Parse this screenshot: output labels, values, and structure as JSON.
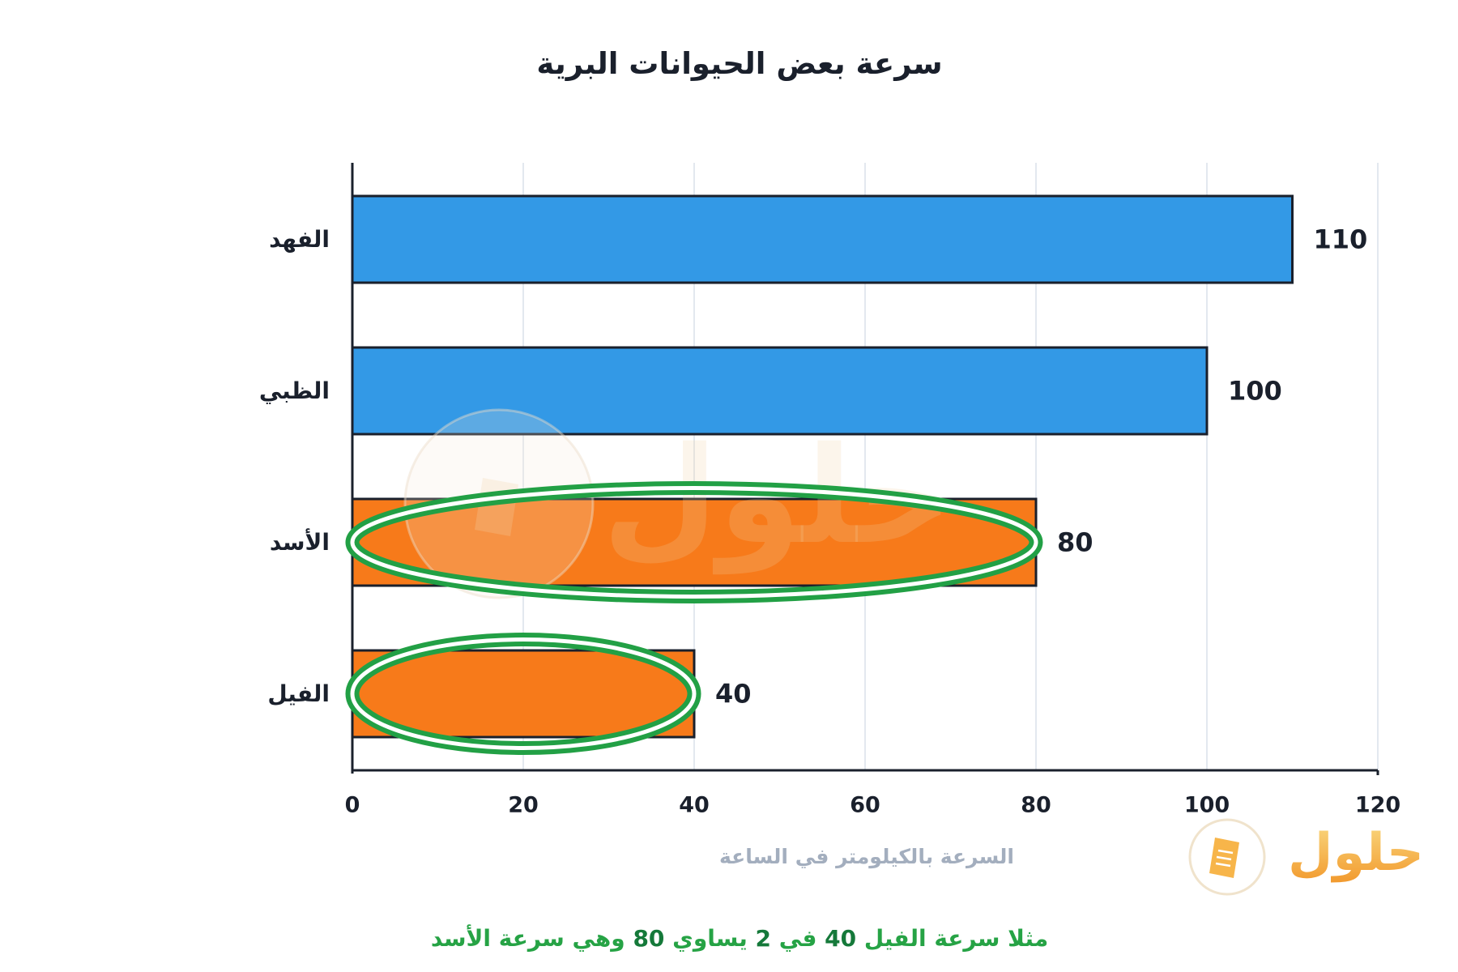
{
  "chart_data": {
    "type": "bar",
    "orientation": "horizontal",
    "title": "سرعة بعض الحيوانات البرية",
    "xlabel": "السرعة بالكيلومتر في الساعة",
    "ylabel": "",
    "categories": [
      "الفهد",
      "الظبي",
      "الأسد",
      "الفيل"
    ],
    "values": [
      110,
      100,
      80,
      40
    ],
    "data_labels": [
      "110",
      "100",
      "80",
      "40"
    ],
    "bar_colors": [
      "#3399E6",
      "#3399E6",
      "#F77A1A",
      "#F77A1A"
    ],
    "xlim": [
      0,
      120
    ],
    "xticks": [
      0,
      20,
      40,
      60,
      80,
      100,
      120
    ],
    "grid": true,
    "highlighted_indices": [
      2,
      3
    ],
    "highlight_color": "#22A045"
  },
  "note": "مثلا سرعة الفيل 40 في 2 يساوي 80 وهي سرعة الأسد",
  "logo": {
    "text": "حلول"
  }
}
